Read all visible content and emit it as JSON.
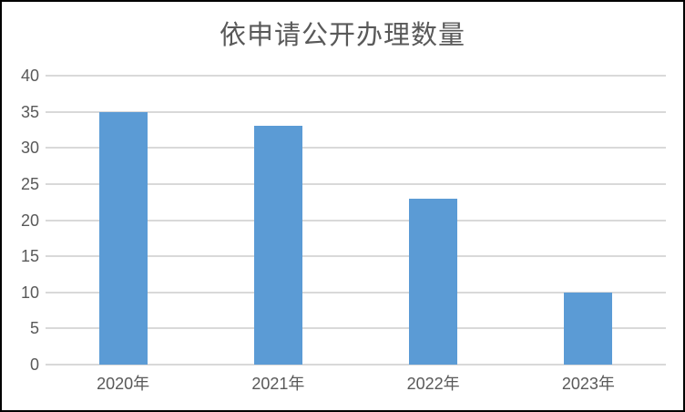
{
  "chart_data": {
    "type": "bar",
    "title": "依申请公开办理数量",
    "categories": [
      "2020年",
      "2021年",
      "2022年",
      "2023年"
    ],
    "values": [
      35,
      33,
      23,
      10
    ],
    "xlabel": "",
    "ylabel": "",
    "ylim": [
      0,
      40
    ],
    "yticks": [
      0,
      5,
      10,
      15,
      20,
      25,
      30,
      35,
      40
    ],
    "grid": true,
    "legend": false,
    "colors": {
      "bar": "#5B9BD5",
      "gridline": "#D9D9D9",
      "text": "#595959",
      "frame_border": "#000000",
      "background": "#FFFFFF"
    }
  }
}
